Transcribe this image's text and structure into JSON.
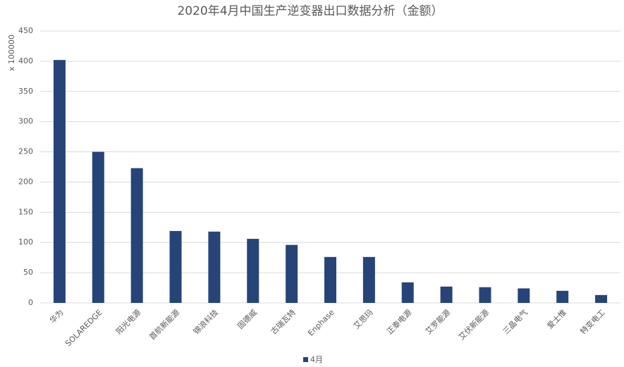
{
  "chart_data": {
    "type": "bar",
    "title": "2020年4月中国生产逆变器出口数据分析（金额）",
    "y_label": "x 100000",
    "categories": [
      "华为",
      "SOLAREDGE",
      "阳光电源",
      "首航新能源",
      "锦浪科技",
      "固德威",
      "古瑞瓦特",
      "Enphase",
      "艾思玛",
      "正泰电源",
      "艾罗能源",
      "艾伏新能源",
      "三晶电气",
      "爱士惟",
      "特变电工"
    ],
    "series": [
      {
        "name": "4月",
        "color": "#264478",
        "values": [
          402,
          250,
          223,
          119,
          118,
          106,
          96,
          76,
          76,
          34,
          27,
          26,
          24,
          20,
          13
        ]
      }
    ],
    "ylim": [
      0,
      450
    ],
    "yticks": [
      0,
      50,
      100,
      150,
      200,
      250,
      300,
      350,
      400,
      450
    ],
    "grid": true,
    "legend": "bottom"
  }
}
